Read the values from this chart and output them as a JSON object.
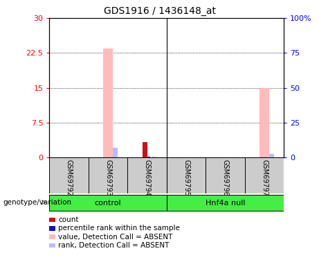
{
  "title": "GDS1916 / 1436148_at",
  "samples": [
    "GSM69792",
    "GSM69793",
    "GSM69794",
    "GSM69795",
    "GSM69796",
    "GSM69797"
  ],
  "group_boundaries": [
    0,
    3,
    6
  ],
  "group_names": [
    "control",
    "Hnf4a null"
  ],
  "group_color": "#44ee44",
  "value_bars": {
    "1": 23.5,
    "5": 15.0
  },
  "rank_bars_pct": {
    "1": 7.0,
    "2": 0.5,
    "5": 2.5
  },
  "count_bars": {
    "2": 3.2
  },
  "percentile_bars_pct": {
    "2": 0.5
  },
  "ylim_left": [
    0,
    30
  ],
  "ylim_right": [
    0,
    100
  ],
  "yticks_left": [
    0,
    7.5,
    15,
    22.5,
    30
  ],
  "ytick_labels_left": [
    "0",
    "7.5",
    "15",
    "22.5",
    "30"
  ],
  "yticks_right": [
    0,
    25,
    50,
    75,
    100
  ],
  "ytick_labels_right": [
    "0",
    "25",
    "50",
    "75",
    "100%"
  ],
  "absent_value_color": "#ffbbbb",
  "absent_rank_color": "#bbbbff",
  "count_color": "#cc1111",
  "percentile_color": "#1111cc",
  "sample_box_color": "#cccccc",
  "legend_items": [
    {
      "color": "#cc1111",
      "label": "count"
    },
    {
      "color": "#1111cc",
      "label": "percentile rank within the sample"
    },
    {
      "color": "#ffbbbb",
      "label": "value, Detection Call = ABSENT"
    },
    {
      "color": "#bbbbff",
      "label": "rank, Detection Call = ABSENT"
    }
  ],
  "group_label": "genotype/variation"
}
